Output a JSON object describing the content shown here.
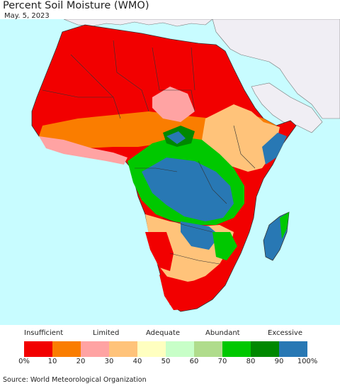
{
  "title": "Percent Soil Moisture (WMO)",
  "date": "May. 5, 2023",
  "legend": {
    "categories": [
      "Insufficient",
      "Limited",
      "Adequate",
      "Abundant",
      "Excessive"
    ],
    "ticks": [
      "0%",
      "10",
      "20",
      "30",
      "40",
      "50",
      "60",
      "70",
      "80",
      "90",
      "100%"
    ],
    "colors": [
      "#f20000",
      "#fa7d00",
      "#ffa3a3",
      "#ffc37a",
      "#ffffc0",
      "#c8ffc8",
      "#b0dc8c",
      "#00c800",
      "#008800",
      "#2878b4"
    ]
  },
  "source": "Source: World Meteorological Organization",
  "colors": {
    "ocean": "#c8fcff",
    "non_africa_land": "#f0eef4",
    "border": "#444444"
  }
}
